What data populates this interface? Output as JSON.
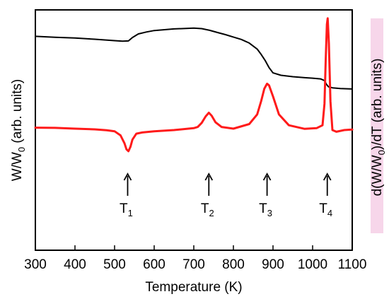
{
  "chart_data": {
    "type": "line",
    "title": "",
    "xlabel": "Temperature (K)",
    "ylabel_left": {
      "main": "W/W",
      "sub": "0",
      "rest": " (arb. units)"
    },
    "ylabel_right": {
      "main": "d(W/W",
      "sub": "0",
      "rest": ")/dT (arb. units)"
    },
    "xlim": [
      300,
      1100
    ],
    "x_ticks": [
      "300",
      "400",
      "500",
      "600",
      "700",
      "800",
      "900",
      "1000",
      "1100"
    ],
    "grid": false,
    "colors": {
      "weight": "#000000",
      "derivative": "#ff1a1a",
      "right_label": "#8b2000",
      "right_label_highlight": "#f7d6ea"
    },
    "series": [
      {
        "axis": "left",
        "x": [
          300,
          350,
          400,
          450,
          500,
          520,
          535,
          545,
          560,
          580,
          600,
          650,
          700,
          720,
          740,
          760,
          780,
          800,
          820,
          840,
          860,
          870,
          880,
          890,
          900,
          920,
          950,
          980,
          1000,
          1020,
          1030,
          1035,
          1040,
          1050,
          1070,
          1100
        ],
        "y": [
          0.89,
          0.886,
          0.883,
          0.878,
          0.872,
          0.87,
          0.871,
          0.885,
          0.9,
          0.908,
          0.914,
          0.921,
          0.924,
          0.922,
          0.915,
          0.906,
          0.897,
          0.887,
          0.877,
          0.862,
          0.837,
          0.815,
          0.79,
          0.76,
          0.738,
          0.728,
          0.722,
          0.718,
          0.716,
          0.713,
          0.706,
          0.69,
          0.68,
          0.676,
          0.673,
          0.671
        ]
      },
      {
        "axis": "right",
        "x": [
          300,
          350,
          400,
          450,
          480,
          500,
          515,
          525,
          530,
          535,
          540,
          545,
          555,
          570,
          600,
          650,
          700,
          710,
          720,
          730,
          738,
          745,
          755,
          770,
          800,
          840,
          860,
          870,
          878,
          885,
          890,
          900,
          915,
          940,
          980,
          1010,
          1025,
          1030,
          1033,
          1036,
          1038,
          1041,
          1045,
          1050,
          1060,
          1080,
          1100
        ],
        "y": [
          0.51,
          0.509,
          0.506,
          0.503,
          0.499,
          0.495,
          0.478,
          0.445,
          0.42,
          0.412,
          0.43,
          0.46,
          0.485,
          0.49,
          0.495,
          0.5,
          0.508,
          0.513,
          0.53,
          0.557,
          0.572,
          0.56,
          0.532,
          0.513,
          0.506,
          0.525,
          0.565,
          0.62,
          0.672,
          0.693,
          0.686,
          0.64,
          0.565,
          0.52,
          0.505,
          0.508,
          0.52,
          0.61,
          0.79,
          0.94,
          0.965,
          0.86,
          0.62,
          0.5,
          0.493,
          0.5,
          0.502
        ]
      }
    ],
    "markers": [
      {
        "label": "T",
        "sub": "1",
        "x": 533
      },
      {
        "label": "T",
        "sub": "2",
        "x": 738
      },
      {
        "label": "T",
        "sub": "3",
        "x": 885
      },
      {
        "label": "T",
        "sub": "4",
        "x": 1037
      }
    ]
  }
}
